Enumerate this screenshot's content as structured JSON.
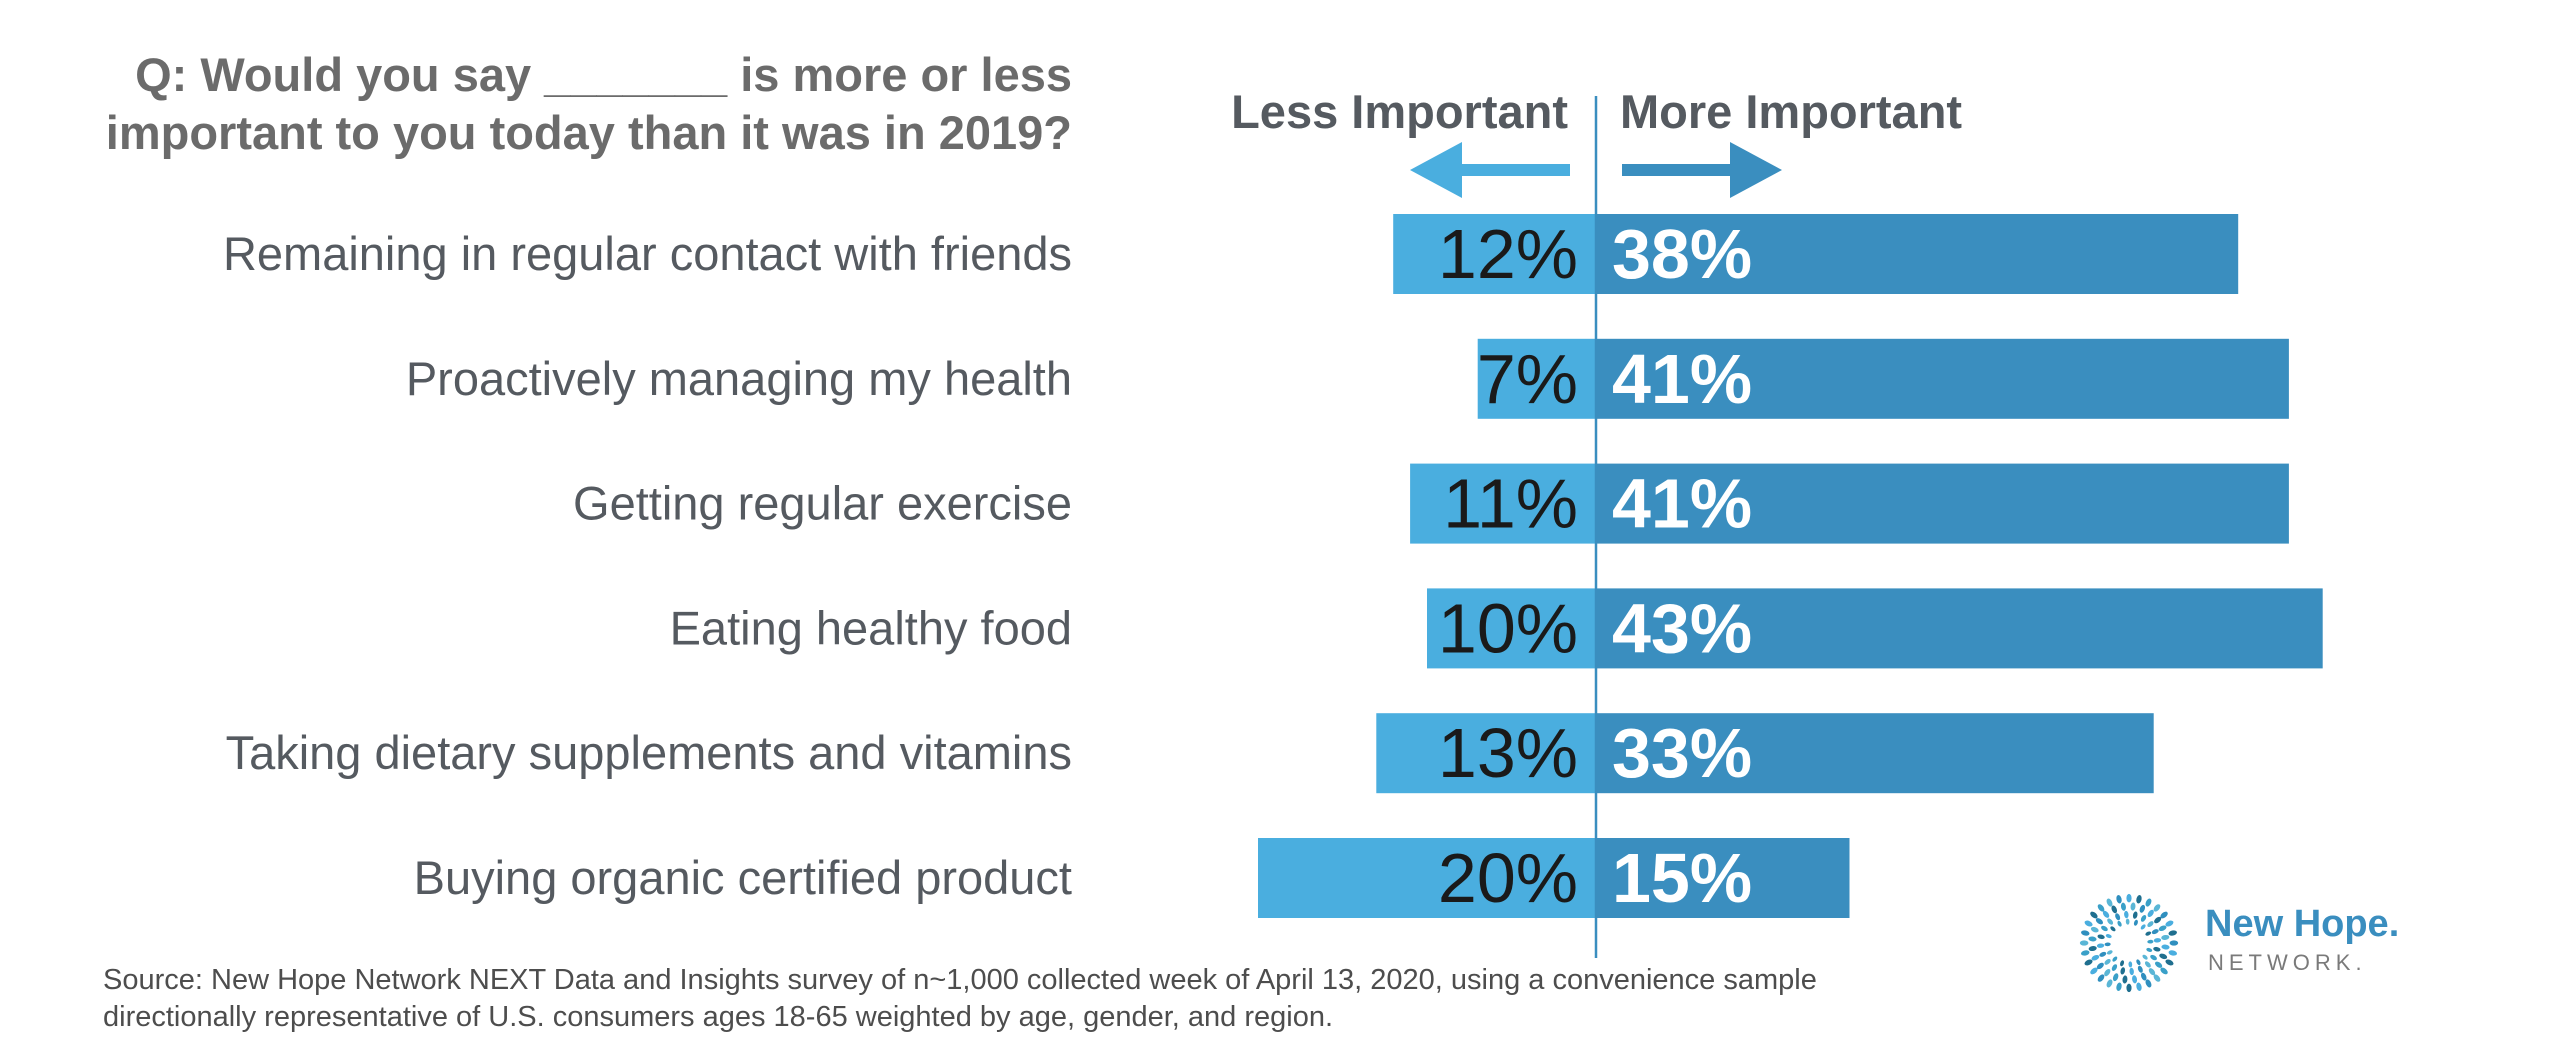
{
  "question": {
    "line1": "Q: Would you say _______ is more or less",
    "line2": "important to you today than it was in 2019?"
  },
  "chart_data": {
    "type": "bar",
    "orientation": "horizontal-diverging",
    "categories": [
      "Remaining in regular contact with friends",
      "Proactively managing my health",
      "Getting regular exercise",
      "Eating healthy food",
      "Taking dietary supplements and vitamins",
      "Buying organic certified product"
    ],
    "series": [
      {
        "name": "Less Important",
        "values": [
          12,
          7,
          11,
          10,
          13,
          20
        ],
        "labels": [
          "12%",
          "7%",
          "11%",
          "10%",
          "13%",
          "20%"
        ],
        "direction": "left"
      },
      {
        "name": "More Important",
        "values": [
          38,
          41,
          41,
          43,
          33,
          15
        ],
        "labels": [
          "38%",
          "41%",
          "41%",
          "43%",
          "33%",
          "15%"
        ],
        "direction": "right"
      }
    ],
    "unit": "%",
    "colors": {
      "less": "#4aaedf",
      "more": "#3a8ebf",
      "divider": "#3a8ebf",
      "category_text": "#555a60",
      "header_text": "#555a60",
      "less_label_text": "#1a1a1a",
      "more_label_text": "#ffffff"
    }
  },
  "source": {
    "line1": "Source: New Hope Network NEXT Data and Insights survey of n~1,000 collected week of April 13, 2020, using a convenience sample",
    "line2": "directionally representative of U.S. consumers ages 18-65 weighted by age, gender, and region."
  },
  "logo": {
    "name": "New Hope.",
    "sub": "NETWORK.",
    "icon": "starburst-logo-icon"
  }
}
